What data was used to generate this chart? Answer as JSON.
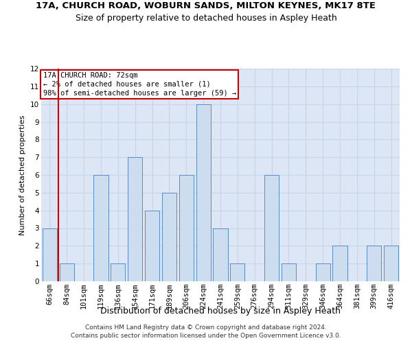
{
  "title_line1": "17A, CHURCH ROAD, WOBURN SANDS, MILTON KEYNES, MK17 8TE",
  "title_line2": "Size of property relative to detached houses in Aspley Heath",
  "xlabel": "Distribution of detached houses by size in Aspley Heath",
  "ylabel": "Number of detached properties",
  "categories": [
    "66sqm",
    "84sqm",
    "101sqm",
    "119sqm",
    "136sqm",
    "154sqm",
    "171sqm",
    "189sqm",
    "206sqm",
    "224sqm",
    "241sqm",
    "259sqm",
    "276sqm",
    "294sqm",
    "311sqm",
    "329sqm",
    "346sqm",
    "364sqm",
    "381sqm",
    "399sqm",
    "416sqm"
  ],
  "values": [
    3,
    1,
    0,
    6,
    1,
    7,
    4,
    5,
    6,
    10,
    3,
    1,
    0,
    6,
    1,
    0,
    1,
    2,
    0,
    2,
    2
  ],
  "bar_color": "#ccddf0",
  "bar_edge_color": "#5a8ac6",
  "annotation_box_text": "17A CHURCH ROAD: 72sqm\n← 2% of detached houses are smaller (1)\n98% of semi-detached houses are larger (59) →",
  "annotation_box_color": "#ffffff",
  "annotation_box_edge_color": "#cc0000",
  "ylim": [
    0,
    12
  ],
  "yticks": [
    0,
    1,
    2,
    3,
    4,
    5,
    6,
    7,
    8,
    9,
    10,
    11,
    12
  ],
  "grid_color": "#c8d4e8",
  "bg_color": "#dce6f5",
  "footer_line1": "Contains HM Land Registry data © Crown copyright and database right 2024.",
  "footer_line2": "Contains public sector information licensed under the Open Government Licence v3.0.",
  "title_fontsize": 9.5,
  "subtitle_fontsize": 9,
  "tick_fontsize": 7.5,
  "xlabel_fontsize": 9,
  "ylabel_fontsize": 8,
  "footer_fontsize": 6.5,
  "ann_fontsize": 7.5
}
